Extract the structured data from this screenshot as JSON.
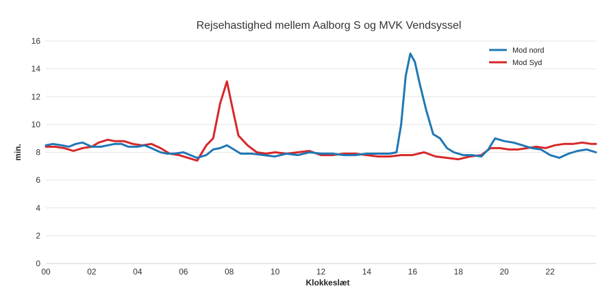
{
  "chart_data": {
    "type": "line",
    "title": "Rejsehastighed mellem Aalborg S og MVK Vendsyssel",
    "xlabel": "Klokkeslæt",
    "ylabel": "min.",
    "xlim": [
      0,
      24
    ],
    "ylim": [
      0,
      16
    ],
    "x_ticks": [
      "00",
      "02",
      "04",
      "06",
      "08",
      "10",
      "12",
      "14",
      "16",
      "18",
      "20",
      "22"
    ],
    "y_ticks": [
      "0",
      "2",
      "4",
      "6",
      "8",
      "10",
      "12",
      "14",
      "16"
    ],
    "grid": "horizontal",
    "legend_position": "top-right",
    "series": [
      {
        "name": "Mod nord",
        "color": "#1f77b4",
        "points": [
          [
            0,
            8.5
          ],
          [
            0.3,
            8.6
          ],
          [
            0.7,
            8.5
          ],
          [
            1.0,
            8.4
          ],
          [
            1.3,
            8.6
          ],
          [
            1.6,
            8.7
          ],
          [
            2.0,
            8.4
          ],
          [
            2.4,
            8.4
          ],
          [
            2.7,
            8.5
          ],
          [
            3.0,
            8.6
          ],
          [
            3.3,
            8.6
          ],
          [
            3.6,
            8.4
          ],
          [
            4.0,
            8.4
          ],
          [
            4.3,
            8.5
          ],
          [
            4.6,
            8.3
          ],
          [
            5.0,
            8.0
          ],
          [
            5.3,
            7.9
          ],
          [
            5.6,
            7.9
          ],
          [
            6.0,
            8.0
          ],
          [
            6.3,
            7.8
          ],
          [
            6.6,
            7.6
          ],
          [
            7.0,
            7.8
          ],
          [
            7.3,
            8.2
          ],
          [
            7.6,
            8.3
          ],
          [
            7.9,
            8.5
          ],
          [
            8.2,
            8.2
          ],
          [
            8.5,
            7.9
          ],
          [
            9.0,
            7.9
          ],
          [
            9.5,
            7.8
          ],
          [
            10.0,
            7.7
          ],
          [
            10.5,
            7.9
          ],
          [
            11.0,
            7.8
          ],
          [
            11.5,
            8.0
          ],
          [
            12.0,
            7.9
          ],
          [
            12.5,
            7.9
          ],
          [
            13.0,
            7.8
          ],
          [
            13.5,
            7.8
          ],
          [
            14.0,
            7.9
          ],
          [
            14.5,
            7.9
          ],
          [
            15.0,
            7.9
          ],
          [
            15.3,
            8.0
          ],
          [
            15.5,
            10.0
          ],
          [
            15.7,
            13.5
          ],
          [
            15.9,
            15.1
          ],
          [
            16.1,
            14.5
          ],
          [
            16.3,
            13.0
          ],
          [
            16.6,
            11.0
          ],
          [
            16.9,
            9.3
          ],
          [
            17.2,
            9.0
          ],
          [
            17.5,
            8.3
          ],
          [
            17.8,
            8.0
          ],
          [
            18.2,
            7.8
          ],
          [
            18.6,
            7.8
          ],
          [
            19.0,
            7.7
          ],
          [
            19.3,
            8.2
          ],
          [
            19.6,
            9.0
          ],
          [
            20.0,
            8.8
          ],
          [
            20.4,
            8.7
          ],
          [
            20.8,
            8.5
          ],
          [
            21.2,
            8.3
          ],
          [
            21.6,
            8.2
          ],
          [
            22.0,
            7.8
          ],
          [
            22.4,
            7.6
          ],
          [
            22.8,
            7.9
          ],
          [
            23.2,
            8.1
          ],
          [
            23.6,
            8.2
          ],
          [
            24.0,
            8.0
          ]
        ]
      },
      {
        "name": "Mod Syd",
        "color": "#d62728",
        "points": [
          [
            0,
            8.4
          ],
          [
            0.4,
            8.4
          ],
          [
            0.8,
            8.3
          ],
          [
            1.2,
            8.1
          ],
          [
            1.6,
            8.3
          ],
          [
            2.0,
            8.4
          ],
          [
            2.3,
            8.7
          ],
          [
            2.7,
            8.9
          ],
          [
            3.0,
            8.8
          ],
          [
            3.4,
            8.8
          ],
          [
            3.8,
            8.6
          ],
          [
            4.2,
            8.5
          ],
          [
            4.6,
            8.6
          ],
          [
            5.0,
            8.3
          ],
          [
            5.4,
            7.9
          ],
          [
            5.8,
            7.8
          ],
          [
            6.2,
            7.6
          ],
          [
            6.6,
            7.4
          ],
          [
            7.0,
            8.5
          ],
          [
            7.3,
            9.0
          ],
          [
            7.6,
            11.5
          ],
          [
            7.9,
            13.1
          ],
          [
            8.1,
            11.5
          ],
          [
            8.4,
            9.2
          ],
          [
            8.8,
            8.5
          ],
          [
            9.2,
            8.0
          ],
          [
            9.6,
            7.9
          ],
          [
            10.0,
            8.0
          ],
          [
            10.5,
            7.9
          ],
          [
            11.0,
            8.0
          ],
          [
            11.5,
            8.1
          ],
          [
            12.0,
            7.8
          ],
          [
            12.5,
            7.8
          ],
          [
            13.0,
            7.9
          ],
          [
            13.5,
            7.9
          ],
          [
            14.0,
            7.8
          ],
          [
            14.5,
            7.7
          ],
          [
            15.0,
            7.7
          ],
          [
            15.5,
            7.8
          ],
          [
            16.0,
            7.8
          ],
          [
            16.5,
            8.0
          ],
          [
            17.0,
            7.7
          ],
          [
            17.5,
            7.6
          ],
          [
            18.0,
            7.5
          ],
          [
            18.5,
            7.7
          ],
          [
            19.0,
            7.8
          ],
          [
            19.4,
            8.3
          ],
          [
            19.8,
            8.3
          ],
          [
            20.2,
            8.2
          ],
          [
            20.6,
            8.2
          ],
          [
            21.0,
            8.3
          ],
          [
            21.4,
            8.4
          ],
          [
            21.8,
            8.3
          ],
          [
            22.2,
            8.5
          ],
          [
            22.6,
            8.6
          ],
          [
            23.0,
            8.6
          ],
          [
            23.4,
            8.7
          ],
          [
            23.8,
            8.6
          ],
          [
            24.0,
            8.6
          ]
        ]
      }
    ]
  }
}
